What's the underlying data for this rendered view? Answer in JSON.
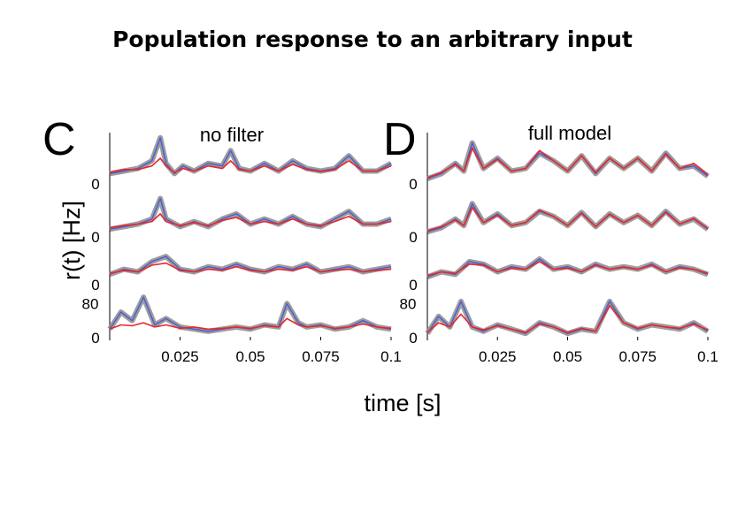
{
  "title": "Population response to an arbitrary input",
  "xlabel": "time [s]",
  "ylabel": "r(t) [Hz]",
  "colors": {
    "data_mean": "#4b5bd6",
    "data_band": "#8c8c8c",
    "model": "#e8262b"
  },
  "chart_data": [
    {
      "panel": "C",
      "title": "no filter",
      "type": "line",
      "xlim": [
        0,
        0.1
      ],
      "xticks": [
        "0.025",
        "0.05",
        "0.075",
        "0.1"
      ],
      "rows": [
        {
          "ytick_labels": [
            "0"
          ],
          "ymax": 100,
          "series": [
            {
              "name": "",
              "role": "data",
              "x": [
                0,
                0.005,
                0.01,
                0.015,
                0.018,
                0.02,
                0.023,
                0.026,
                0.03,
                0.035,
                0.04,
                0.043,
                0.046,
                0.05,
                0.055,
                0.06,
                0.065,
                0.07,
                0.075,
                0.08,
                0.085,
                0.09,
                0.095,
                0.1
              ],
              "y": [
                20,
                25,
                30,
                45,
                90,
                40,
                20,
                35,
                25,
                40,
                35,
                65,
                30,
                25,
                40,
                25,
                45,
                30,
                25,
                30,
                55,
                25,
                25,
                40
              ]
            },
            {
              "name": "",
              "role": "model",
              "x": [
                0,
                0.005,
                0.01,
                0.015,
                0.018,
                0.02,
                0.023,
                0.026,
                0.03,
                0.035,
                0.04,
                0.043,
                0.046,
                0.05,
                0.055,
                0.06,
                0.065,
                0.07,
                0.075,
                0.08,
                0.085,
                0.09,
                0.095,
                0.1
              ],
              "y": [
                22,
                28,
                28,
                35,
                50,
                35,
                22,
                30,
                25,
                35,
                30,
                45,
                28,
                25,
                35,
                25,
                38,
                28,
                24,
                28,
                45,
                25,
                25,
                35
              ]
            }
          ]
        },
        {
          "ytick_labels": [
            "0"
          ],
          "ymax": 100,
          "series": [
            {
              "name": "",
              "role": "data",
              "x": [
                0,
                0.005,
                0.01,
                0.015,
                0.018,
                0.02,
                0.025,
                0.03,
                0.035,
                0.04,
                0.045,
                0.05,
                0.055,
                0.06,
                0.065,
                0.07,
                0.075,
                0.08,
                0.085,
                0.09,
                0.095,
                0.1
              ],
              "y": [
                15,
                20,
                25,
                35,
                75,
                35,
                20,
                30,
                20,
                35,
                45,
                25,
                35,
                25,
                40,
                25,
                20,
                35,
                50,
                25,
                25,
                35
              ]
            },
            {
              "name": "",
              "role": "model",
              "x": [
                0,
                0.005,
                0.01,
                0.015,
                0.018,
                0.02,
                0.025,
                0.03,
                0.035,
                0.04,
                0.045,
                0.05,
                0.055,
                0.06,
                0.065,
                0.07,
                0.075,
                0.08,
                0.085,
                0.09,
                0.095,
                0.1
              ],
              "y": [
                18,
                22,
                25,
                30,
                45,
                30,
                22,
                28,
                22,
                32,
                38,
                25,
                30,
                25,
                35,
                25,
                22,
                30,
                40,
                25,
                25,
                30
              ]
            }
          ]
        },
        {
          "ytick_labels": [
            "0"
          ],
          "ymax": 100,
          "series": [
            {
              "name": "",
              "role": "data",
              "x": [
                0,
                0.005,
                0.01,
                0.015,
                0.02,
                0.025,
                0.03,
                0.035,
                0.04,
                0.045,
                0.05,
                0.055,
                0.06,
                0.065,
                0.07,
                0.075,
                0.08,
                0.085,
                0.09,
                0.095,
                0.1
              ],
              "y": [
                20,
                30,
                25,
                45,
                55,
                30,
                25,
                35,
                30,
                40,
                30,
                25,
                35,
                30,
                40,
                25,
                30,
                35,
                25,
                30,
                35
              ]
            },
            {
              "name": "",
              "role": "model",
              "x": [
                0,
                0.005,
                0.01,
                0.015,
                0.02,
                0.025,
                0.03,
                0.035,
                0.04,
                0.045,
                0.05,
                0.055,
                0.06,
                0.065,
                0.07,
                0.075,
                0.08,
                0.085,
                0.09,
                0.095,
                0.1
              ],
              "y": [
                22,
                28,
                25,
                38,
                42,
                28,
                25,
                30,
                28,
                35,
                28,
                25,
                30,
                28,
                35,
                25,
                28,
                30,
                25,
                28,
                30
              ]
            }
          ]
        },
        {
          "ytick_labels": [
            "0",
            "80"
          ],
          "ymax": 120,
          "series": [
            {
              "name": "",
              "role": "data",
              "x": [
                0,
                0.004,
                0.008,
                0.012,
                0.016,
                0.02,
                0.025,
                0.03,
                0.035,
                0.04,
                0.045,
                0.05,
                0.055,
                0.06,
                0.063,
                0.067,
                0.07,
                0.075,
                0.08,
                0.085,
                0.09,
                0.095,
                0.1
              ],
              "y": [
                20,
                60,
                40,
                95,
                30,
                45,
                25,
                20,
                15,
                20,
                25,
                20,
                30,
                25,
                80,
                35,
                25,
                30,
                20,
                25,
                40,
                25,
                20
              ]
            },
            {
              "name": "",
              "role": "model",
              "x": [
                0,
                0.004,
                0.008,
                0.012,
                0.016,
                0.02,
                0.025,
                0.03,
                0.035,
                0.04,
                0.045,
                0.05,
                0.055,
                0.06,
                0.063,
                0.067,
                0.07,
                0.075,
                0.08,
                0.085,
                0.09,
                0.095,
                0.1
              ],
              "y": [
                20,
                30,
                28,
                35,
                25,
                30,
                22,
                25,
                20,
                22,
                25,
                22,
                28,
                25,
                45,
                30,
                25,
                28,
                22,
                25,
                32,
                25,
                22
              ]
            }
          ]
        }
      ]
    },
    {
      "panel": "D",
      "title": "full model",
      "type": "line",
      "xlim": [
        0,
        0.1
      ],
      "xticks": [
        "0.025",
        "0.05",
        "0.075",
        "0.1"
      ],
      "rows": [
        {
          "ytick_labels": [
            "0"
          ],
          "ymax": 100,
          "series": [
            {
              "name": "",
              "role": "data",
              "x": [
                0,
                0.005,
                0.01,
                0.013,
                0.016,
                0.02,
                0.025,
                0.03,
                0.035,
                0.04,
                0.045,
                0.05,
                0.055,
                0.06,
                0.065,
                0.07,
                0.075,
                0.08,
                0.085,
                0.09,
                0.095,
                0.1
              ],
              "y": [
                10,
                20,
                40,
                25,
                80,
                30,
                50,
                25,
                30,
                60,
                45,
                25,
                55,
                20,
                50,
                30,
                50,
                25,
                60,
                30,
                35,
                15
              ]
            },
            {
              "name": "",
              "role": "model",
              "x": [
                0,
                0.005,
                0.01,
                0.013,
                0.016,
                0.02,
                0.025,
                0.03,
                0.035,
                0.04,
                0.045,
                0.05,
                0.055,
                0.06,
                0.065,
                0.07,
                0.075,
                0.08,
                0.085,
                0.09,
                0.095,
                0.1
              ],
              "y": [
                12,
                22,
                38,
                25,
                70,
                30,
                48,
                25,
                30,
                65,
                45,
                25,
                55,
                22,
                50,
                30,
                50,
                25,
                58,
                30,
                40,
                18
              ]
            }
          ]
        },
        {
          "ytick_labels": [
            "0"
          ],
          "ymax": 100,
          "series": [
            {
              "name": "",
              "role": "data",
              "x": [
                0,
                0.005,
                0.01,
                0.013,
                0.016,
                0.02,
                0.025,
                0.03,
                0.035,
                0.04,
                0.045,
                0.05,
                0.055,
                0.06,
                0.065,
                0.07,
                0.075,
                0.08,
                0.085,
                0.09,
                0.095,
                0.1
              ],
              "y": [
                10,
                18,
                35,
                22,
                65,
                28,
                45,
                22,
                28,
                50,
                40,
                22,
                48,
                20,
                45,
                28,
                42,
                22,
                50,
                25,
                35,
                15
              ]
            },
            {
              "name": "",
              "role": "model",
              "x": [
                0,
                0.005,
                0.01,
                0.013,
                0.016,
                0.02,
                0.025,
                0.03,
                0.035,
                0.04,
                0.045,
                0.05,
                0.055,
                0.06,
                0.065,
                0.07,
                0.075,
                0.08,
                0.085,
                0.09,
                0.095,
                0.1
              ],
              "y": [
                12,
                20,
                33,
                22,
                58,
                28,
                42,
                22,
                28,
                52,
                40,
                22,
                46,
                20,
                44,
                28,
                42,
                22,
                48,
                25,
                36,
                16
              ]
            }
          ]
        },
        {
          "ytick_labels": [
            "0"
          ],
          "ymax": 100,
          "series": [
            {
              "name": "",
              "role": "data",
              "x": [
                0,
                0.005,
                0.01,
                0.015,
                0.02,
                0.025,
                0.03,
                0.035,
                0.04,
                0.045,
                0.05,
                0.055,
                0.06,
                0.065,
                0.07,
                0.075,
                0.08,
                0.085,
                0.09,
                0.095,
                0.1
              ],
              "y": [
                15,
                25,
                20,
                45,
                40,
                25,
                35,
                30,
                50,
                30,
                35,
                25,
                40,
                30,
                35,
                30,
                40,
                25,
                35,
                30,
                20
              ]
            },
            {
              "name": "",
              "role": "model",
              "x": [
                0,
                0.005,
                0.01,
                0.015,
                0.02,
                0.025,
                0.03,
                0.035,
                0.04,
                0.045,
                0.05,
                0.055,
                0.06,
                0.065,
                0.07,
                0.075,
                0.08,
                0.085,
                0.09,
                0.095,
                0.1
              ],
              "y": [
                18,
                25,
                22,
                40,
                38,
                25,
                32,
                30,
                45,
                30,
                32,
                25,
                38,
                30,
                34,
                30,
                38,
                25,
                33,
                30,
                22
              ]
            }
          ]
        },
        {
          "ytick_labels": [
            "0",
            "80"
          ],
          "ymax": 120,
          "series": [
            {
              "name": "",
              "role": "data",
              "x": [
                0,
                0.004,
                0.008,
                0.012,
                0.016,
                0.02,
                0.025,
                0.03,
                0.035,
                0.04,
                0.045,
                0.05,
                0.055,
                0.06,
                0.065,
                0.07,
                0.075,
                0.08,
                0.085,
                0.09,
                0.095,
                0.1
              ],
              "y": [
                10,
                50,
                25,
                85,
                25,
                15,
                30,
                20,
                10,
                35,
                25,
                10,
                20,
                15,
                85,
                35,
                20,
                30,
                25,
                20,
                35,
                15
              ]
            },
            {
              "name": "",
              "role": "model",
              "x": [
                0,
                0.004,
                0.008,
                0.012,
                0.016,
                0.02,
                0.025,
                0.03,
                0.035,
                0.04,
                0.045,
                0.05,
                0.055,
                0.06,
                0.065,
                0.07,
                0.075,
                0.08,
                0.085,
                0.09,
                0.095,
                0.1
              ],
              "y": [
                12,
                35,
                25,
                55,
                25,
                18,
                28,
                20,
                12,
                32,
                25,
                12,
                22,
                15,
                75,
                35,
                22,
                30,
                25,
                22,
                32,
                18
              ]
            }
          ]
        }
      ]
    }
  ]
}
